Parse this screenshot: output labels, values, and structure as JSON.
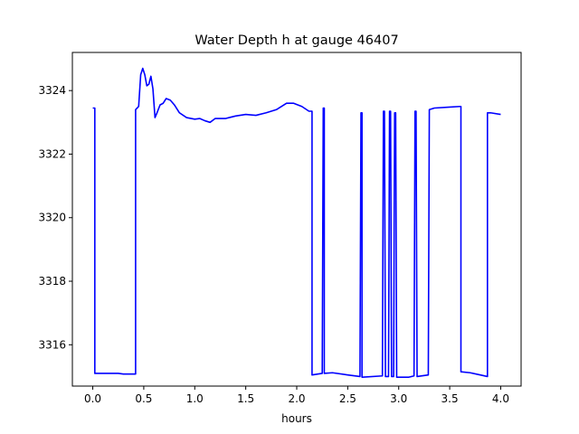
{
  "chart_data": {
    "type": "line",
    "title": "Water Depth h at gauge 46407",
    "xlabel": "hours",
    "ylabel": "",
    "xlim": [
      -0.2,
      4.2
    ],
    "ylim": [
      3314.7,
      3325.2
    ],
    "x_ticks": [
      0.0,
      0.5,
      1.0,
      1.5,
      2.0,
      2.5,
      3.0,
      3.5,
      4.0
    ],
    "x_tick_labels": [
      "0.0",
      "0.5",
      "1.0",
      "1.5",
      "2.0",
      "2.5",
      "3.0",
      "3.5",
      "4.0"
    ],
    "y_ticks": [
      3316,
      3318,
      3320,
      3322,
      3324
    ],
    "y_tick_labels": [
      "3316",
      "3318",
      "3320",
      "3322",
      "3324"
    ],
    "grid": false,
    "series": [
      {
        "color": "#0000ff",
        "points": [
          [
            0.0,
            3323.45
          ],
          [
            0.02,
            3323.45
          ],
          [
            0.02,
            3315.1
          ],
          [
            0.25,
            3315.1
          ],
          [
            0.3,
            3315.08
          ],
          [
            0.42,
            3315.08
          ],
          [
            0.42,
            3323.4
          ],
          [
            0.45,
            3323.5
          ],
          [
            0.47,
            3324.5
          ],
          [
            0.49,
            3324.7
          ],
          [
            0.51,
            3324.5
          ],
          [
            0.53,
            3324.15
          ],
          [
            0.55,
            3324.2
          ],
          [
            0.57,
            3324.45
          ],
          [
            0.59,
            3324.05
          ],
          [
            0.61,
            3323.15
          ],
          [
            0.63,
            3323.3
          ],
          [
            0.66,
            3323.55
          ],
          [
            0.69,
            3323.6
          ],
          [
            0.72,
            3323.75
          ],
          [
            0.76,
            3323.7
          ],
          [
            0.8,
            3323.55
          ],
          [
            0.85,
            3323.3
          ],
          [
            0.92,
            3323.15
          ],
          [
            1.0,
            3323.1
          ],
          [
            1.05,
            3323.12
          ],
          [
            1.1,
            3323.05
          ],
          [
            1.15,
            3323.0
          ],
          [
            1.2,
            3323.12
          ],
          [
            1.3,
            3323.12
          ],
          [
            1.4,
            3323.2
          ],
          [
            1.5,
            3323.25
          ],
          [
            1.6,
            3323.22
          ],
          [
            1.7,
            3323.3
          ],
          [
            1.8,
            3323.4
          ],
          [
            1.9,
            3323.6
          ],
          [
            1.97,
            3323.6
          ],
          [
            2.05,
            3323.5
          ],
          [
            2.12,
            3323.35
          ],
          [
            2.15,
            3323.35
          ],
          [
            2.15,
            3315.05
          ],
          [
            2.25,
            3315.1
          ],
          [
            2.26,
            3323.45
          ],
          [
            2.27,
            3323.45
          ],
          [
            2.27,
            3315.1
          ],
          [
            2.35,
            3315.12
          ],
          [
            2.5,
            3315.05
          ],
          [
            2.62,
            3315.0
          ],
          [
            2.63,
            3323.3
          ],
          [
            2.64,
            3323.3
          ],
          [
            2.64,
            3314.98
          ],
          [
            2.84,
            3315.02
          ],
          [
            2.85,
            3323.35
          ],
          [
            2.86,
            3323.35
          ],
          [
            2.87,
            3315.0
          ],
          [
            2.9,
            3315.0
          ],
          [
            2.91,
            3323.35
          ],
          [
            2.92,
            3323.35
          ],
          [
            2.93,
            3315.0
          ],
          [
            2.95,
            3315.0
          ],
          [
            2.96,
            3323.3
          ],
          [
            2.97,
            3323.3
          ],
          [
            2.98,
            3314.98
          ],
          [
            3.1,
            3314.98
          ],
          [
            3.15,
            3315.02
          ],
          [
            3.16,
            3323.35
          ],
          [
            3.17,
            3323.35
          ],
          [
            3.18,
            3315.0
          ],
          [
            3.29,
            3315.05
          ],
          [
            3.3,
            3323.4
          ],
          [
            3.35,
            3323.45
          ],
          [
            3.5,
            3323.48
          ],
          [
            3.6,
            3323.5
          ],
          [
            3.61,
            3323.5
          ],
          [
            3.61,
            3315.15
          ],
          [
            3.7,
            3315.12
          ],
          [
            3.8,
            3315.05
          ],
          [
            3.87,
            3315.0
          ],
          [
            3.87,
            3323.3
          ],
          [
            3.9,
            3323.3
          ],
          [
            4.0,
            3323.25
          ]
        ]
      }
    ]
  }
}
